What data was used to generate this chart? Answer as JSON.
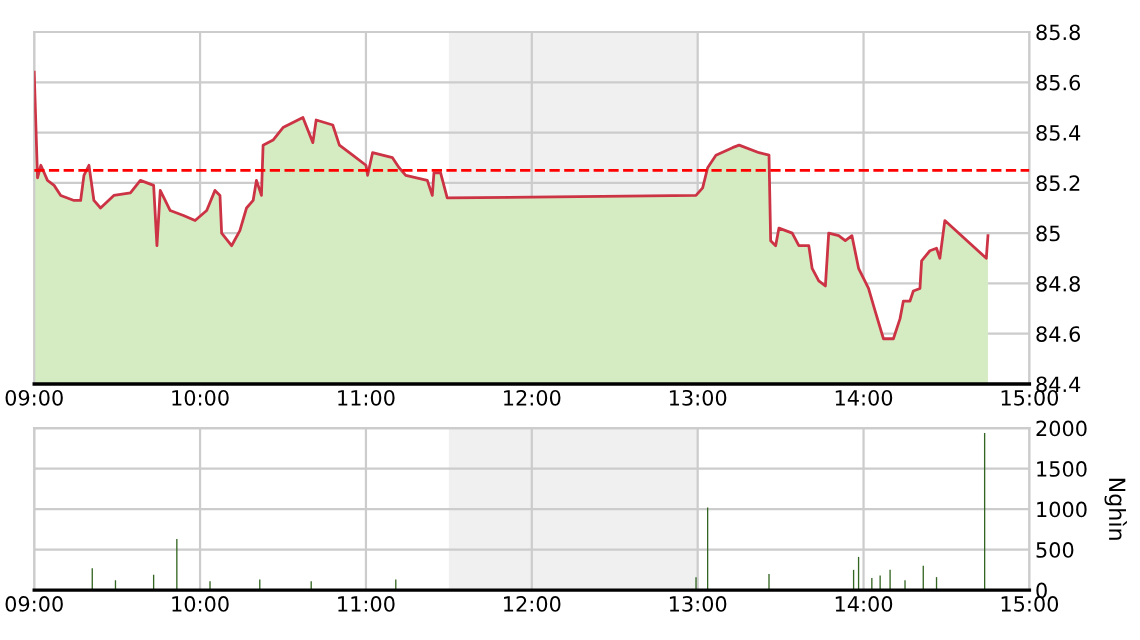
{
  "chart_data": [
    {
      "type": "area",
      "x": [
        9.0,
        9.02,
        9.04,
        9.08,
        9.12,
        9.16,
        9.24,
        9.28,
        9.3,
        9.33,
        9.36,
        9.4,
        9.48,
        9.58,
        9.64,
        9.72,
        9.74,
        9.76,
        9.82,
        9.9,
        9.97,
        10.04,
        10.09,
        10.12,
        10.13,
        10.19,
        10.24,
        10.28,
        10.32,
        10.34,
        10.37,
        10.38,
        10.44,
        10.5,
        10.56,
        10.62,
        10.68,
        10.7,
        10.8,
        10.84,
        10.92,
        11.0,
        11.01,
        11.04,
        11.1,
        11.16,
        11.2,
        11.24,
        11.37,
        11.4,
        11.41,
        11.45,
        11.49,
        12.99,
        13.03,
        13.06,
        13.11,
        13.21,
        13.25,
        13.37,
        13.43,
        13.44,
        13.47,
        13.49,
        13.57,
        13.61,
        13.67,
        13.69,
        13.73,
        13.77,
        13.79,
        13.85,
        13.89,
        13.93,
        13.97,
        14.03,
        14.07,
        14.12,
        14.18,
        14.22,
        14.24,
        14.28,
        14.3,
        14.34,
        14.35,
        14.4,
        14.44,
        14.46,
        14.49,
        14.74,
        14.75
      ],
      "series": [
        {
          "type": "area",
          "color": "#d5ecc2",
          "values": [
            85.64,
            85.22,
            85.27,
            85.21,
            85.19,
            85.15,
            85.13,
            85.13,
            85.23,
            85.27,
            85.13,
            85.1,
            85.15,
            85.16,
            85.21,
            85.19,
            84.95,
            85.17,
            85.09,
            85.07,
            85.05,
            85.09,
            85.17,
            85.15,
            85.0,
            84.95,
            85.01,
            85.1,
            85.13,
            85.21,
            85.15,
            85.35,
            85.37,
            85.42,
            85.44,
            85.46,
            85.36,
            85.45,
            85.43,
            85.35,
            85.31,
            85.27,
            85.23,
            85.32,
            85.31,
            85.3,
            85.26,
            85.23,
            85.21,
            85.15,
            85.24,
            85.24,
            85.14,
            85.15,
            85.18,
            85.26,
            85.31,
            85.34,
            85.35,
            85.32,
            85.31,
            84.97,
            84.95,
            85.02,
            85.0,
            84.95,
            84.95,
            84.86,
            84.81,
            84.79,
            85.0,
            84.99,
            84.97,
            84.99,
            84.86,
            84.78,
            84.69,
            84.58,
            84.58,
            84.66,
            84.73,
            84.73,
            84.77,
            84.78,
            84.89,
            84.93,
            84.94,
            84.9,
            85.05,
            84.9,
            84.99
          ]
        },
        {
          "type": "line",
          "color": "#cc3344",
          "values": [
            85.64,
            85.22,
            85.27,
            85.21,
            85.19,
            85.15,
            85.13,
            85.13,
            85.23,
            85.27,
            85.13,
            85.1,
            85.15,
            85.16,
            85.21,
            85.19,
            84.95,
            85.17,
            85.09,
            85.07,
            85.05,
            85.09,
            85.17,
            85.15,
            85.0,
            84.95,
            85.01,
            85.1,
            85.13,
            85.21,
            85.15,
            85.35,
            85.37,
            85.42,
            85.44,
            85.46,
            85.36,
            85.45,
            85.43,
            85.35,
            85.31,
            85.27,
            85.23,
            85.32,
            85.31,
            85.3,
            85.26,
            85.23,
            85.21,
            85.15,
            85.24,
            85.24,
            85.14,
            85.15,
            85.18,
            85.26,
            85.31,
            85.34,
            85.35,
            85.32,
            85.31,
            84.97,
            84.95,
            85.02,
            85.0,
            84.95,
            84.95,
            84.86,
            84.81,
            84.79,
            85.0,
            84.99,
            84.97,
            84.99,
            84.86,
            84.78,
            84.69,
            84.58,
            84.58,
            84.66,
            84.73,
            84.73,
            84.77,
            84.78,
            84.89,
            84.93,
            84.94,
            84.9,
            85.05,
            84.9,
            84.99
          ]
        }
      ],
      "xlim": [
        9,
        15
      ],
      "xticks": [
        {
          "value": 9,
          "label": "09:00"
        },
        {
          "value": 10,
          "label": "10:00"
        },
        {
          "value": 11,
          "label": "11:00"
        },
        {
          "value": 12,
          "label": "12:00"
        },
        {
          "value": 13,
          "label": "13:00"
        },
        {
          "value": 14,
          "label": "14:00"
        },
        {
          "value": 15,
          "label": "15:00"
        }
      ],
      "ylim": [
        84.4,
        85.8
      ],
      "yticks": [
        84.4,
        84.6,
        84.8,
        85,
        85.2,
        85.4,
        85.6,
        85.8
      ],
      "grid": true,
      "ref_lines": [
        {
          "axis": "y",
          "value": 85.25,
          "color": "#ff0000",
          "line_style": "dashed"
        }
      ],
      "bands": [
        {
          "axis": "x",
          "from": 11.5,
          "to": 13,
          "color": "#f0f0f0"
        }
      ]
    },
    {
      "type": "bar",
      "x": [
        9.35,
        9.49,
        9.72,
        9.86,
        10.06,
        10.36,
        10.67,
        11.18,
        12.99,
        13.06,
        13.43,
        13.94,
        13.97,
        14.05,
        14.1,
        14.16,
        14.25,
        14.36,
        14.44,
        14.73
      ],
      "values": [
        270,
        120,
        190,
        630,
        110,
        130,
        110,
        130,
        160,
        1020,
        200,
        250,
        410,
        150,
        180,
        250,
        120,
        300,
        160,
        1940
      ],
      "color": "#336622",
      "ylabel": "Nghìn",
      "xlim": [
        9,
        15
      ],
      "xticks": [
        {
          "value": 9,
          "label": "09:00"
        },
        {
          "value": 10,
          "label": "10:00"
        },
        {
          "value": 11,
          "label": "11:00"
        },
        {
          "value": 12,
          "label": "12:00"
        },
        {
          "value": 13,
          "label": "13:00"
        },
        {
          "value": 14,
          "label": "14:00"
        },
        {
          "value": 15,
          "label": "15:00"
        }
      ],
      "ylim": [
        0,
        2000
      ],
      "yticks": [
        0,
        500,
        1000,
        1500,
        2000
      ],
      "grid": true,
      "bands": [
        {
          "axis": "x",
          "from": 11.5,
          "to": 13,
          "color": "#f0f0f0"
        }
      ]
    }
  ]
}
